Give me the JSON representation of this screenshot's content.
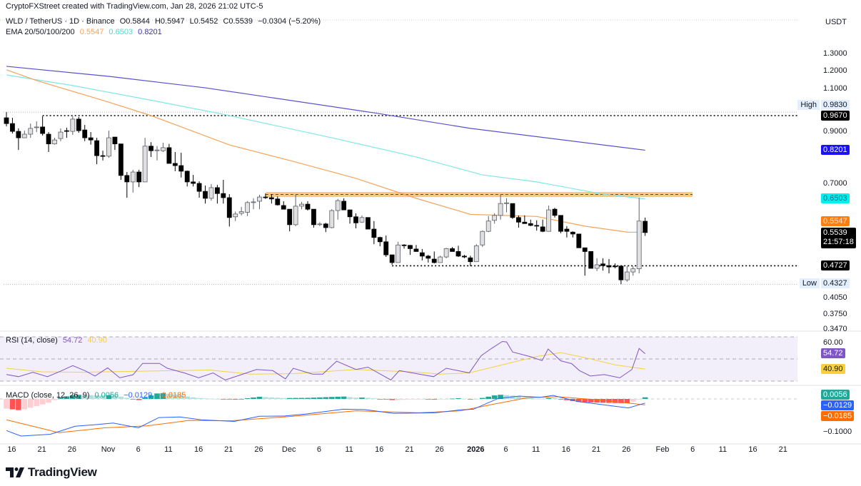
{
  "header": {
    "credit": "CryptoFXStreet created with TradingView.com, Jan 28, 2026 21:02 UTC-5"
  },
  "legend": {
    "symbol": "WLD / TetherUS · 1D · Binance",
    "open": "O0.5844",
    "high": "H0.5947",
    "low": "L0.5452",
    "close": "C0.5539",
    "change": "−0.0304 (−5.20%)",
    "ema_label": "EMA 20/50/100/200",
    "ema_values": [
      "0.5547",
      "0.6503",
      "0.8201"
    ]
  },
  "price_axis": {
    "currency": "USDT",
    "ticks": [
      "1.3000",
      "1.2000",
      "1.1000",
      "0.9000",
      "0.7000",
      "0.4050",
      "0.3750",
      "0.3470"
    ],
    "high_label": "High",
    "high_value": "0.9830",
    "low_label": "Low",
    "low_value": "0.4327",
    "level_high": "0.9670",
    "ema200": "0.8201",
    "ema100": "0.6503",
    "ema50": "0.5547",
    "last_price": "0.5539",
    "countdown": "21:57:18",
    "support": "0.4727"
  },
  "rsi": {
    "label": "RSI (14, close)",
    "value": "54.72",
    "ma": "40.90",
    "level": "60.00"
  },
  "macd": {
    "label": "MACD (close, 12, 26, 9)",
    "hist": "0.0056",
    "macd": "−0.0129",
    "signal": "−0.0185",
    "axis": "−0.1000"
  },
  "time_axis": [
    {
      "label": "16",
      "idx": 1
    },
    {
      "label": "21",
      "idx": 6
    },
    {
      "label": "26",
      "idx": 11
    },
    {
      "label": "Nov",
      "idx": 17
    },
    {
      "label": "6",
      "idx": 22
    },
    {
      "label": "11",
      "idx": 27
    },
    {
      "label": "16",
      "idx": 32
    },
    {
      "label": "21",
      "idx": 37
    },
    {
      "label": "26",
      "idx": 42
    },
    {
      "label": "Dec",
      "idx": 47
    },
    {
      "label": "6",
      "idx": 52
    },
    {
      "label": "11",
      "idx": 57
    },
    {
      "label": "16",
      "idx": 62
    },
    {
      "label": "21",
      "idx": 67
    },
    {
      "label": "26",
      "idx": 72
    },
    {
      "label": "2026",
      "idx": 78,
      "bold": true
    },
    {
      "label": "6",
      "idx": 83
    },
    {
      "label": "11",
      "idx": 88
    },
    {
      "label": "16",
      "idx": 93
    },
    {
      "label": "21",
      "idx": 98
    },
    {
      "label": "26",
      "idx": 103
    },
    {
      "label": "Feb",
      "idx": 109
    },
    {
      "label": "6",
      "idx": 114
    },
    {
      "label": "11",
      "idx": 119
    },
    {
      "label": "16",
      "idx": 124
    },
    {
      "label": "21",
      "idx": 129
    }
  ],
  "brand": "TradingView",
  "colors": {
    "bull_body": "#e0e0e0",
    "bull_border": "#5d606b",
    "bear": "#000000",
    "ema50": "#f5a35a",
    "ema100": "#7fe7e4",
    "ema200": "#5a4fcf",
    "ema200_box": "#1a10ff",
    "ema100_box": "#00f0f0",
    "ema50_box": "#ff7f0e",
    "rsi": "#7e57c2",
    "rsi_ma": "#f5d142",
    "rsi_bg": "#f2effa",
    "macd": "#2962ff",
    "signal": "#ff6d00",
    "hist_box": "#26a69a",
    "zone": "#f7b84b"
  },
  "chart_data": {
    "type": "candlestick",
    "title": "WLD / TetherUS · 1D · Binance",
    "scale": "log",
    "ylim": [
      0.34,
      1.32
    ],
    "candles": [
      [
        0.957,
        0.983,
        0.919,
        0.931
      ],
      [
        0.931,
        0.957,
        0.888,
        0.897
      ],
      [
        0.897,
        0.91,
        0.821,
        0.87
      ],
      [
        0.87,
        0.9,
        0.87,
        0.885
      ],
      [
        0.885,
        0.931,
        0.87,
        0.91
      ],
      [
        0.913,
        0.941,
        0.894,
        0.916
      ],
      [
        0.916,
        0.964,
        0.879,
        0.888
      ],
      [
        0.885,
        0.894,
        0.813,
        0.845
      ],
      [
        0.845,
        0.87,
        0.842,
        0.861
      ],
      [
        0.867,
        0.91,
        0.856,
        0.894
      ],
      [
        0.9,
        0.913,
        0.87,
        0.897
      ],
      [
        0.897,
        0.964,
        0.882,
        0.951
      ],
      [
        0.951,
        0.961,
        0.891,
        0.9
      ],
      [
        0.903,
        0.925,
        0.856,
        0.87
      ],
      [
        0.87,
        0.894,
        0.842,
        0.861
      ],
      [
        0.858,
        0.87,
        0.767,
        0.799
      ],
      [
        0.799,
        0.818,
        0.781,
        0.797
      ],
      [
        0.797,
        0.9,
        0.791,
        0.87
      ],
      [
        0.873,
        0.873,
        0.821,
        0.845
      ],
      [
        0.845,
        0.845,
        0.712,
        0.727
      ],
      [
        0.727,
        0.739,
        0.654,
        0.705
      ],
      [
        0.705,
        0.747,
        0.67,
        0.739
      ],
      [
        0.739,
        0.747,
        0.688,
        0.705
      ],
      [
        0.705,
        0.87,
        0.705,
        0.836
      ],
      [
        0.836,
        0.852,
        0.794,
        0.818
      ],
      [
        0.818,
        0.836,
        0.781,
        0.821
      ],
      [
        0.818,
        0.85,
        0.813,
        0.83
      ],
      [
        0.83,
        0.845,
        0.77,
        0.77
      ],
      [
        0.77,
        0.813,
        0.742,
        0.762
      ],
      [
        0.762,
        0.81,
        0.72,
        0.742
      ],
      [
        0.742,
        0.744,
        0.69,
        0.705
      ],
      [
        0.705,
        0.729,
        0.69,
        0.7
      ],
      [
        0.7,
        0.707,
        0.654,
        0.674
      ],
      [
        0.674,
        0.693,
        0.636,
        0.652
      ],
      [
        0.652,
        0.698,
        0.645,
        0.686
      ],
      [
        0.686,
        0.695,
        0.636,
        0.667
      ],
      [
        0.667,
        0.712,
        0.636,
        0.654
      ],
      [
        0.654,
        0.665,
        0.57,
        0.595
      ],
      [
        0.597,
        0.612,
        0.585,
        0.605
      ],
      [
        0.607,
        0.626,
        0.601,
        0.612
      ],
      [
        0.61,
        0.643,
        0.599,
        0.639
      ],
      [
        0.639,
        0.652,
        0.619,
        0.641
      ],
      [
        0.643,
        0.663,
        0.619,
        0.656
      ],
      [
        0.656,
        0.667,
        0.65,
        0.655
      ],
      [
        0.654,
        0.665,
        0.636,
        0.65
      ],
      [
        0.65,
        0.658,
        0.63,
        0.632
      ],
      [
        0.63,
        0.643,
        0.619,
        0.619
      ],
      [
        0.619,
        0.619,
        0.557,
        0.575
      ],
      [
        0.575,
        0.663,
        0.571,
        0.628
      ],
      [
        0.628,
        0.641,
        0.619,
        0.634
      ],
      [
        0.634,
        0.643,
        0.615,
        0.619
      ],
      [
        0.619,
        0.619,
        0.567,
        0.575
      ],
      [
        0.575,
        0.582,
        0.571,
        0.577
      ],
      [
        0.577,
        0.58,
        0.555,
        0.567
      ],
      [
        0.567,
        0.619,
        0.565,
        0.615
      ],
      [
        0.615,
        0.65,
        0.589,
        0.645
      ],
      [
        0.643,
        0.652,
        0.617,
        0.617
      ],
      [
        0.617,
        0.617,
        0.578,
        0.597
      ],
      [
        0.597,
        0.607,
        0.565,
        0.58
      ],
      [
        0.582,
        0.601,
        0.58,
        0.595
      ],
      [
        0.595,
        0.595,
        0.563,
        0.563
      ],
      [
        0.563,
        0.585,
        0.524,
        0.541
      ],
      [
        0.541,
        0.543,
        0.519,
        0.53
      ],
      [
        0.53,
        0.546,
        0.493,
        0.498
      ],
      [
        0.498,
        0.498,
        0.475,
        0.48
      ],
      [
        0.48,
        0.53,
        0.48,
        0.522
      ],
      [
        0.522,
        0.524,
        0.513,
        0.521
      ],
      [
        0.521,
        0.522,
        0.498,
        0.513
      ],
      [
        0.512,
        0.522,
        0.506,
        0.506
      ],
      [
        0.503,
        0.512,
        0.485,
        0.495
      ],
      [
        0.495,
        0.498,
        0.48,
        0.49
      ],
      [
        0.488,
        0.506,
        0.478,
        0.48
      ],
      [
        0.48,
        0.496,
        0.48,
        0.493
      ],
      [
        0.493,
        0.515,
        0.49,
        0.513
      ],
      [
        0.513,
        0.517,
        0.506,
        0.506
      ],
      [
        0.506,
        0.52,
        0.493,
        0.495
      ],
      [
        0.495,
        0.498,
        0.49,
        0.493
      ],
      [
        0.491,
        0.496,
        0.472,
        0.482
      ],
      [
        0.482,
        0.524,
        0.482,
        0.52
      ],
      [
        0.522,
        0.559,
        0.517,
        0.557
      ],
      [
        0.557,
        0.599,
        0.555,
        0.585
      ],
      [
        0.587,
        0.607,
        0.578,
        0.601
      ],
      [
        0.601,
        0.663,
        0.589,
        0.636
      ],
      [
        0.636,
        0.652,
        0.61,
        0.638
      ],
      [
        0.636,
        0.636,
        0.591,
        0.595
      ],
      [
        0.595,
        0.601,
        0.567,
        0.582
      ],
      [
        0.582,
        0.601,
        0.578,
        0.578
      ],
      [
        0.578,
        0.589,
        0.571,
        0.573
      ],
      [
        0.573,
        0.587,
        0.559,
        0.571
      ],
      [
        0.569,
        0.589,
        0.555,
        0.557
      ],
      [
        0.557,
        0.63,
        0.557,
        0.617
      ],
      [
        0.619,
        0.623,
        0.595,
        0.601
      ],
      [
        0.601,
        0.601,
        0.552,
        0.557
      ],
      [
        0.563,
        0.571,
        0.541,
        0.557
      ],
      [
        0.555,
        0.557,
        0.541,
        0.55
      ],
      [
        0.55,
        0.55,
        0.515,
        0.515
      ],
      [
        0.515,
        0.515,
        0.451,
        0.506
      ],
      [
        0.506,
        0.506,
        0.467,
        0.467
      ],
      [
        0.467,
        0.49,
        0.461,
        0.475
      ],
      [
        0.477,
        0.49,
        0.462,
        0.473
      ],
      [
        0.473,
        0.488,
        0.456,
        0.47
      ],
      [
        0.472,
        0.478,
        0.467,
        0.471
      ],
      [
        0.472,
        0.472,
        0.433,
        0.442
      ],
      [
        0.442,
        0.472,
        0.438,
        0.459
      ],
      [
        0.459,
        0.472,
        0.451,
        0.466
      ],
      [
        0.466,
        0.654,
        0.456,
        0.585
      ],
      [
        0.5844,
        0.5947,
        0.5452,
        0.5539
      ]
    ],
    "ema50": [
      [
        0,
        1.203
      ],
      [
        5,
        1.143
      ],
      [
        17,
        1.031
      ],
      [
        24,
        0.967
      ],
      [
        37,
        0.841
      ],
      [
        48,
        0.775
      ],
      [
        58,
        0.717
      ],
      [
        68,
        0.652
      ],
      [
        77,
        0.604
      ],
      [
        88,
        0.598
      ],
      [
        96,
        0.571
      ],
      [
        103,
        0.555
      ],
      [
        106,
        0.5547
      ]
    ],
    "ema100": [
      [
        0,
        1.174
      ],
      [
        11,
        1.116
      ],
      [
        25,
        1.035
      ],
      [
        36,
        0.973
      ],
      [
        54,
        0.87
      ],
      [
        68,
        0.794
      ],
      [
        79,
        0.729
      ],
      [
        88,
        0.705
      ],
      [
        99,
        0.665
      ],
      [
        106,
        0.6503
      ]
    ],
    "ema200": [
      [
        0,
        1.223
      ],
      [
        17,
        1.166
      ],
      [
        33,
        1.104
      ],
      [
        61,
        0.98
      ],
      [
        77,
        0.91
      ],
      [
        106,
        0.8201
      ]
    ],
    "levels": {
      "resistance_zone": [
        0.656,
        0.672
      ],
      "resistance_start": 43,
      "support": 0.4727,
      "support_start": 64,
      "high_line": 0.967,
      "high_line_start": 6,
      "high": 0.983,
      "low": 0.4327
    },
    "rsi": [
      [
        0,
        36
      ],
      [
        2,
        34
      ],
      [
        4.4,
        38
      ],
      [
        6.8,
        34
      ],
      [
        9,
        39
      ],
      [
        11,
        44
      ],
      [
        13,
        39.5
      ],
      [
        14.7,
        34.6
      ],
      [
        16.8,
        42
      ],
      [
        18.8,
        33
      ],
      [
        21,
        35.7
      ],
      [
        22.6,
        46
      ],
      [
        25.4,
        46
      ],
      [
        26.7,
        41.6
      ],
      [
        29.5,
        37.4
      ],
      [
        31.9,
        33
      ],
      [
        34.3,
        37.4
      ],
      [
        36.3,
        31
      ],
      [
        38.7,
        35.3
      ],
      [
        41.5,
        40.5
      ],
      [
        44.2,
        39.5
      ],
      [
        46.3,
        32
      ],
      [
        47.6,
        41.6
      ],
      [
        50.8,
        36.3
      ],
      [
        52.5,
        36.3
      ],
      [
        54.8,
        48
      ],
      [
        58,
        40.5
      ],
      [
        60,
        42.6
      ],
      [
        63.8,
        31
      ],
      [
        65.2,
        39.5
      ],
      [
        68.5,
        36.3
      ],
      [
        70.9,
        34
      ],
      [
        73,
        41.6
      ],
      [
        76.8,
        37.4
      ],
      [
        78.8,
        53
      ],
      [
        80.5,
        59.5
      ],
      [
        82.3,
        65.8
      ],
      [
        83,
        65.4
      ],
      [
        84,
        56.3
      ],
      [
        87,
        52
      ],
      [
        88.9,
        48.5
      ],
      [
        89.9,
        59
      ],
      [
        92,
        48.3
      ],
      [
        93.8,
        45.8
      ],
      [
        95.1,
        39.5
      ],
      [
        96.9,
        34.6
      ],
      [
        99.2,
        35.9
      ],
      [
        101.8,
        33
      ],
      [
        103.8,
        40.5
      ],
      [
        105,
        59.5
      ],
      [
        106,
        54.72
      ]
    ],
    "rsi_ma": [
      [
        0,
        41.6
      ],
      [
        5.9,
        38.4
      ],
      [
        12.8,
        38
      ],
      [
        23.3,
        39
      ],
      [
        33.7,
        40
      ],
      [
        40.6,
        36.3
      ],
      [
        47.6,
        36.7
      ],
      [
        58,
        40.5
      ],
      [
        68.4,
        38
      ],
      [
        71.9,
        36.3
      ],
      [
        76.8,
        37.4
      ],
      [
        82.3,
        44.7
      ],
      [
        87.8,
        52
      ],
      [
        92,
        55.7
      ],
      [
        96.2,
        51
      ],
      [
        101,
        44.7
      ],
      [
        106,
        40.9
      ]
    ],
    "rsi_levels": [
      70,
      50,
      30
    ],
    "macd_line": [
      [
        0,
        -0.0985
      ],
      [
        2.4,
        -0.1156
      ],
      [
        7.3,
        -0.11
      ],
      [
        11.4,
        -0.085
      ],
      [
        14.9,
        -0.08
      ],
      [
        17.7,
        -0.075
      ],
      [
        21.9,
        -0.09
      ],
      [
        25.3,
        -0.058
      ],
      [
        28.8,
        -0.056
      ],
      [
        32.3,
        -0.065
      ],
      [
        37.8,
        -0.07
      ],
      [
        42,
        -0.054
      ],
      [
        46.2,
        -0.053
      ],
      [
        49.7,
        -0.047
      ],
      [
        55.9,
        -0.032
      ],
      [
        59.4,
        -0.033
      ],
      [
        64.3,
        -0.045
      ],
      [
        71.2,
        -0.043
      ],
      [
        75.4,
        -0.034
      ],
      [
        77.5,
        -0.032
      ],
      [
        81.6,
        0.0015
      ],
      [
        85.1,
        0.009
      ],
      [
        88.6,
        0.005
      ],
      [
        90.7,
        0.011
      ],
      [
        94.8,
        -0.008
      ],
      [
        99,
        -0.018
      ],
      [
        103.2,
        -0.028
      ],
      [
        106,
        -0.0129
      ]
    ],
    "signal_line": [
      [
        0,
        -0.065
      ],
      [
        8.7,
        -0.105
      ],
      [
        16.3,
        -0.09
      ],
      [
        23.3,
        -0.084
      ],
      [
        30.2,
        -0.067
      ],
      [
        37.2,
        -0.068
      ],
      [
        47.6,
        -0.054
      ],
      [
        58,
        -0.037
      ],
      [
        68.4,
        -0.043
      ],
      [
        75.4,
        -0.037
      ],
      [
        80.9,
        -0.016
      ],
      [
        86.5,
        0.004
      ],
      [
        91.4,
        0.007
      ],
      [
        97.6,
        -0.002
      ],
      [
        106,
        -0.0185
      ]
    ]
  }
}
